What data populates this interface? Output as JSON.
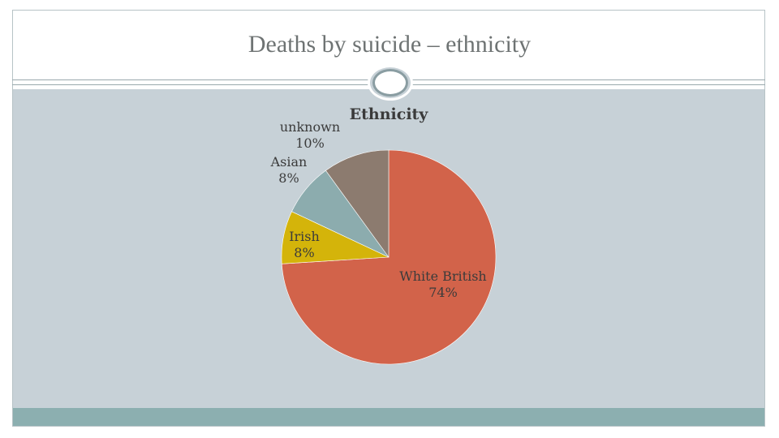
{
  "slide": {
    "title": "Deaths by suicide – ethnicity"
  },
  "chart_data": {
    "type": "pie",
    "title": "Ethnicity",
    "slices": [
      {
        "label": "White British",
        "value": 74,
        "display": "74%",
        "color": "#d2634a"
      },
      {
        "label": "Irish",
        "value": 8,
        "display": "8%",
        "color": "#d4b40a"
      },
      {
        "label": "Asian",
        "value": 8,
        "display": "8%",
        "color": "#8cacae"
      },
      {
        "label": "unknown",
        "value": 10,
        "display": "10%",
        "color": "#8c7b6f"
      }
    ],
    "start": "12 o'clock",
    "direction": "clockwise",
    "legend": "none"
  },
  "colors": {
    "background_band": "#c7d1d7",
    "footer_band": "#8cafb0",
    "title_text": "#6e7373"
  }
}
